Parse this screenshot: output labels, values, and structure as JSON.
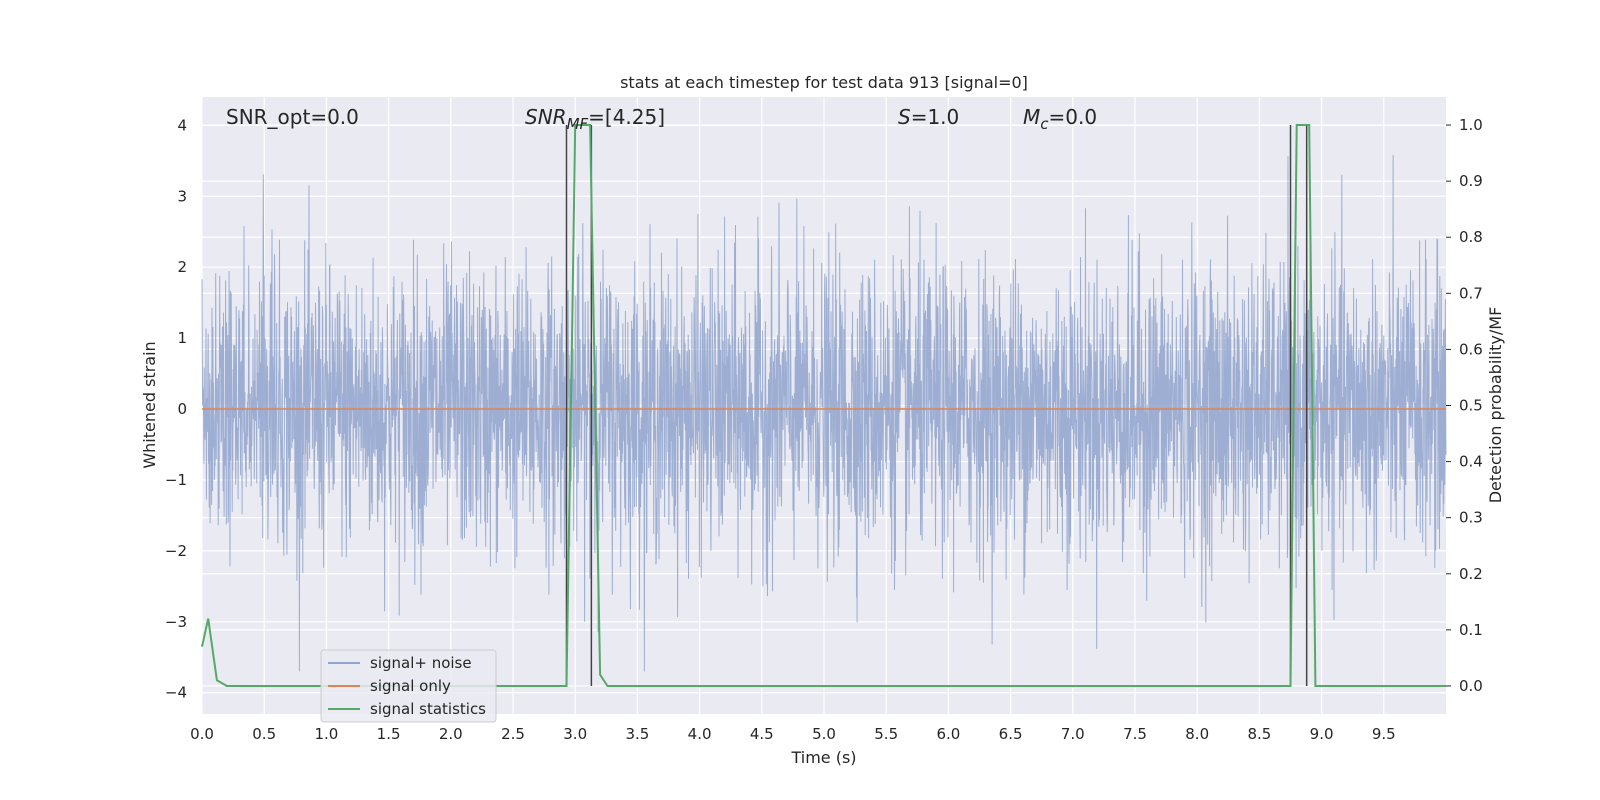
{
  "chart_data": {
    "type": "line",
    "title": "stats at each timestep for test data 913 [signal=0]",
    "xlabel": "Time (s)",
    "ylabel": "Whitened strain",
    "ylabel_right": "Detection probability/MF",
    "xlim": [
      0,
      10
    ],
    "ylim": [
      -4.3,
      4.4
    ],
    "ylim_right": [
      -0.05,
      1.05
    ],
    "x_ticks": [
      "0.0",
      "0.5",
      "1.0",
      "1.5",
      "2.0",
      "2.5",
      "3.0",
      "3.5",
      "4.0",
      "4.5",
      "5.0",
      "5.5",
      "6.0",
      "6.5",
      "7.0",
      "7.5",
      "8.0",
      "8.5",
      "9.0",
      "9.5"
    ],
    "y_ticks": [
      "4",
      "3",
      "2",
      "1",
      "0",
      "−1",
      "−2",
      "−3",
      "−4"
    ],
    "y_ticks_right": [
      "1.0",
      "0.9",
      "0.8",
      "0.7",
      "0.6",
      "0.5",
      "0.4",
      "0.3",
      "0.2",
      "0.1",
      "0.0"
    ],
    "grid": true,
    "legend_position": "lower-left",
    "annotations": {
      "snr_opt": "SNR_opt=0.0",
      "snr_mf_sym": "SNR",
      "snr_mf_sub": "MF",
      "snr_mf_val": "=[4.25]",
      "s_sym": "S",
      "s_val": "=1.0",
      "mc_sym": "M",
      "mc_sub": "c",
      "mc_val": "=0.0"
    },
    "series": [
      {
        "name": "signal+ noise",
        "color": "#8fa3cc",
        "axis": "left",
        "description": "whitened noise, approx. Gaussian with std ~1.0, spanning about -3.7 to 3.6 across 0 to 10 s"
      },
      {
        "name": "signal only",
        "color": "#dd8452",
        "axis": "left",
        "x": [
          0,
          10
        ],
        "values": [
          0,
          0
        ]
      },
      {
        "name": "signal statistics",
        "color": "#55a868",
        "axis": "right",
        "x": [
          0.0,
          0.05,
          0.12,
          0.2,
          2.93,
          2.98,
          3.0,
          3.12,
          3.2,
          3.26,
          8.75,
          8.8,
          8.9,
          8.95,
          10.0
        ],
        "values": [
          0.07,
          0.12,
          0.01,
          0.0,
          0.0,
          0.7,
          1.0,
          1.0,
          0.02,
          0.0,
          0.0,
          1.0,
          1.0,
          0.0,
          0.0
        ]
      }
    ],
    "vlines": [
      2.93,
      3.13,
      8.75,
      8.88
    ]
  }
}
